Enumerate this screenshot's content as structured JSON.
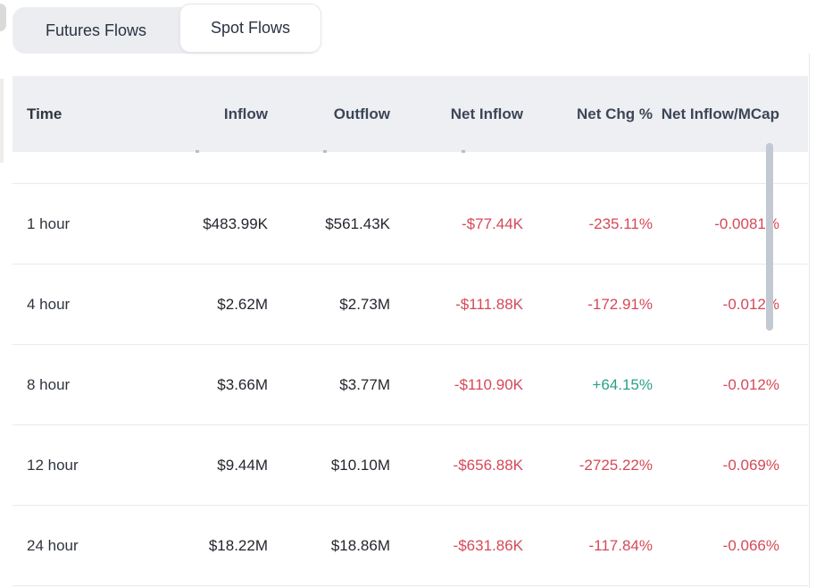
{
  "tabs": [
    {
      "label": "Futures Flows",
      "active": false
    },
    {
      "label": "Spot Flows",
      "active": true
    }
  ],
  "table": {
    "columns": [
      "Time",
      "Inflow",
      "Outflow",
      "Net Inflow",
      "Net Chg %",
      "Net Inflow/MCap"
    ],
    "rows": [
      {
        "time": "1 hour",
        "inflow": "$483.99K",
        "outflow": "$561.43K",
        "net_inflow": "-$77.44K",
        "net_chg": "-235.11%",
        "net_inflow_mcap": "-0.0081%"
      },
      {
        "time": "4 hour",
        "inflow": "$2.62M",
        "outflow": "$2.73M",
        "net_inflow": "-$111.88K",
        "net_chg": "-172.91%",
        "net_inflow_mcap": "-0.012%"
      },
      {
        "time": "8 hour",
        "inflow": "$3.66M",
        "outflow": "$3.77M",
        "net_inflow": "-$110.90K",
        "net_chg": "+64.15%",
        "net_inflow_mcap": "-0.012%"
      },
      {
        "time": "12 hour",
        "inflow": "$9.44M",
        "outflow": "$10.10M",
        "net_inflow": "-$656.88K",
        "net_chg": "-2725.22%",
        "net_inflow_mcap": "-0.069%"
      },
      {
        "time": "24 hour",
        "inflow": "$18.22M",
        "outflow": "$18.86M",
        "net_inflow": "-$631.86K",
        "net_chg": "-117.84%",
        "net_inflow_mcap": "-0.066%"
      }
    ]
  },
  "colors": {
    "negative": "#d5495a",
    "positive": "#2aa189",
    "header_bg": "#edeff3",
    "tab_bg": "#ecedf1"
  }
}
